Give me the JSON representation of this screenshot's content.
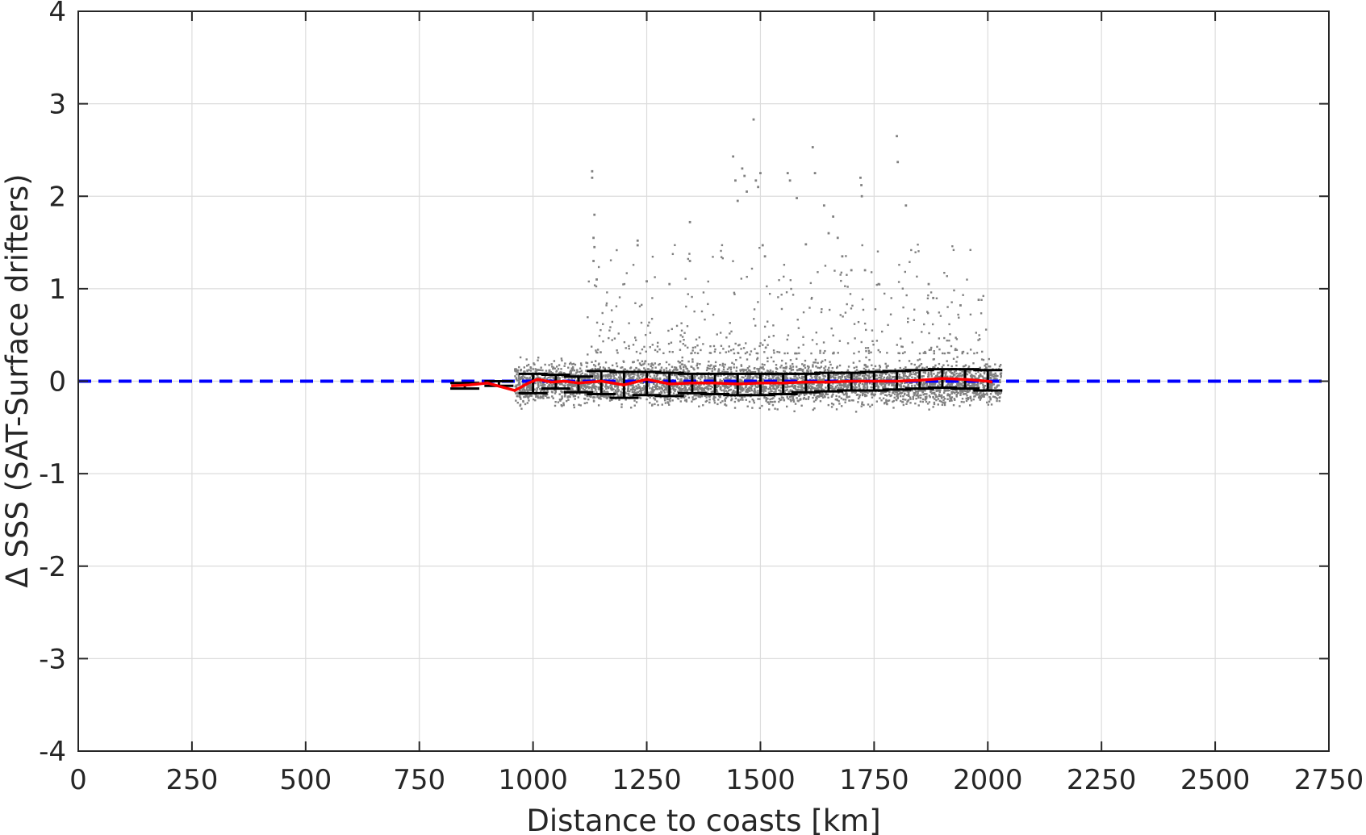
{
  "chart_data": {
    "type": "scatter",
    "title": "",
    "xlabel": "Distance to coasts [km]",
    "ylabel": "Δ SSS (SAT-Surface drifters)",
    "xlim": [
      0,
      2750
    ],
    "ylim": [
      -4,
      4
    ],
    "xticks": [
      0,
      250,
      500,
      750,
      1000,
      1250,
      1500,
      1750,
      2000,
      2250,
      2500,
      2750
    ],
    "yticks": [
      -4,
      -3,
      -2,
      -1,
      0,
      1,
      2,
      3,
      4
    ],
    "xtick_labels": [
      "0",
      "250",
      "500",
      "750",
      "1000",
      "1250",
      "1500",
      "1750",
      "2000",
      "2250",
      "2500",
      "2750"
    ],
    "ytick_labels": [
      "-4",
      "-3",
      "-2",
      "-1",
      "0",
      "1",
      "2",
      "3",
      "4"
    ],
    "grid": true,
    "colors": {
      "scatter": "#808080",
      "mean_line": "#ff0000",
      "reference_line": "#0000ff",
      "error_bars": "#000000",
      "grid": "#dcdcdc",
      "axes": "#262626"
    },
    "reference_line": {
      "y": 0,
      "style": "dashed"
    },
    "scatter_cloud": {
      "x_range": [
        960,
        2030
      ],
      "core_spread_y": [
        -0.35,
        0.3
      ],
      "outliers": [
        [
          1130,
          2.27
        ],
        [
          1130,
          2.2
        ],
        [
          1135,
          1.8
        ],
        [
          1133,
          1.55
        ],
        [
          1135,
          1.45
        ],
        [
          1133,
          1.3
        ],
        [
          1140,
          1.1
        ],
        [
          1230,
          1.52
        ],
        [
          1230,
          1.47
        ],
        [
          1250,
          1.08
        ],
        [
          1300,
          1.05
        ],
        [
          1345,
          1.72
        ],
        [
          1345,
          1.3
        ],
        [
          1440,
          2.43
        ],
        [
          1445,
          2.17
        ],
        [
          1450,
          1.95
        ],
        [
          1460,
          2.3
        ],
        [
          1465,
          2.22
        ],
        [
          1470,
          2.05
        ],
        [
          1485,
          2.83
        ],
        [
          1490,
          2.17
        ],
        [
          1495,
          2.1
        ],
        [
          1500,
          2.25
        ],
        [
          1505,
          1.47
        ],
        [
          1510,
          1.35
        ],
        [
          1560,
          2.25
        ],
        [
          1565,
          2.17
        ],
        [
          1580,
          1.98
        ],
        [
          1600,
          1.48
        ],
        [
          1615,
          2.53
        ],
        [
          1620,
          2.25
        ],
        [
          1640,
          1.9
        ],
        [
          1650,
          1.6
        ],
        [
          1660,
          1.78
        ],
        [
          1670,
          1.55
        ],
        [
          1680,
          1.35
        ],
        [
          1700,
          1.2
        ],
        [
          1720,
          2.2
        ],
        [
          1722,
          2.12
        ],
        [
          1723,
          2.0
        ],
        [
          1730,
          1.2
        ],
        [
          1760,
          1.05
        ],
        [
          1800,
          2.65
        ],
        [
          1802,
          2.37
        ],
        [
          1820,
          1.9
        ],
        [
          1870,
          1.05
        ],
        [
          1880,
          0.9
        ],
        [
          1940,
          0.82
        ],
        [
          1980,
          0.88
        ]
      ]
    },
    "series": [
      {
        "name": "",
        "kind": "mean_line",
        "x": [
          820,
          860,
          900,
          930,
          960,
          990,
          1010,
          1040,
          1070,
          1100,
          1150,
          1200,
          1250,
          1300,
          1350,
          1400,
          1450,
          1500,
          1550,
          1600,
          1650,
          1700,
          1750,
          1800,
          1850,
          1900,
          1950,
          2000,
          2010
        ],
        "y": [
          -0.05,
          -0.04,
          -0.02,
          -0.06,
          -0.1,
          -0.02,
          0.02,
          -0.01,
          0.0,
          -0.02,
          0.0,
          -0.04,
          0.02,
          -0.03,
          -0.02,
          -0.02,
          -0.03,
          -0.02,
          -0.02,
          -0.01,
          -0.01,
          0.0,
          0.0,
          0.0,
          0.01,
          0.03,
          0.02,
          0.0,
          -0.01
        ]
      },
      {
        "name": "",
        "kind": "error_bars",
        "x": [
          850,
          925,
          1000,
          1050,
          1100,
          1150,
          1200,
          1250,
          1300,
          1350,
          1400,
          1450,
          1500,
          1550,
          1600,
          1650,
          1700,
          1750,
          1800,
          1850,
          1900,
          1950,
          2000
        ],
        "low": [
          -0.08,
          -0.05,
          -0.13,
          -0.08,
          -0.12,
          -0.14,
          -0.18,
          -0.15,
          -0.16,
          -0.13,
          -0.14,
          -0.15,
          -0.15,
          -0.14,
          -0.12,
          -0.11,
          -0.1,
          -0.1,
          -0.09,
          -0.08,
          -0.07,
          -0.08,
          -0.1
        ],
        "high": [
          -0.02,
          0.0,
          0.08,
          0.07,
          0.05,
          0.11,
          0.1,
          0.1,
          0.09,
          0.08,
          0.08,
          0.08,
          0.08,
          0.08,
          0.08,
          0.09,
          0.09,
          0.1,
          0.11,
          0.12,
          0.13,
          0.13,
          0.12
        ]
      }
    ]
  }
}
